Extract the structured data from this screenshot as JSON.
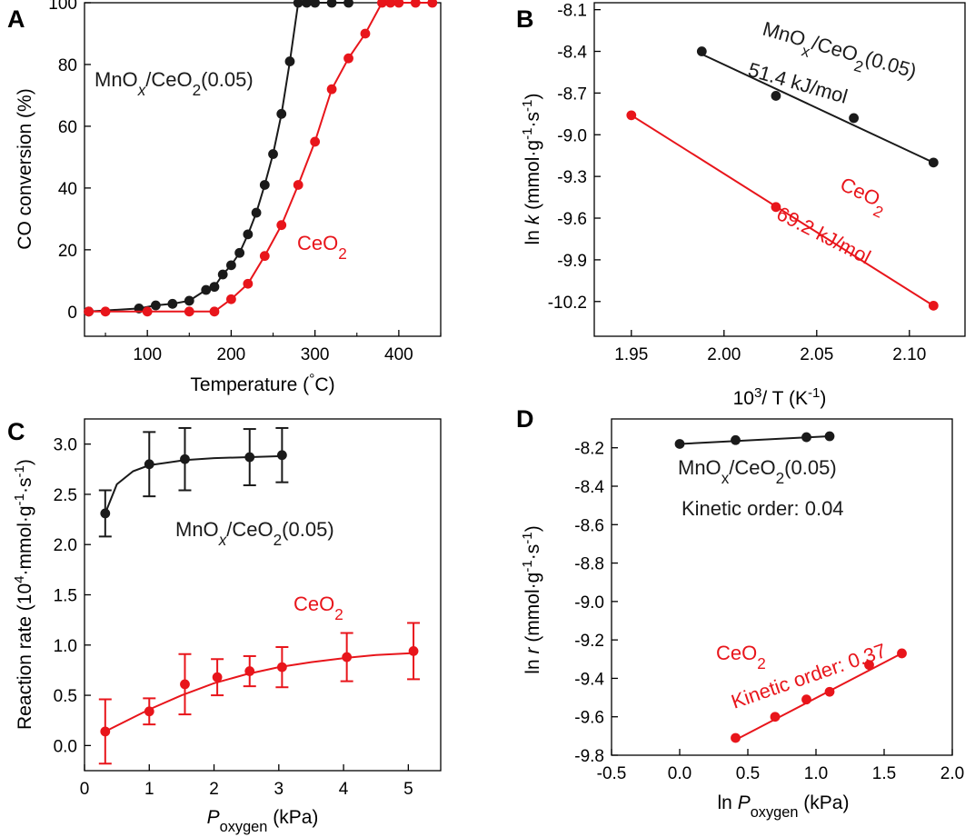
{
  "panel_labels": [
    "A",
    "B",
    "C",
    "D"
  ],
  "colors": {
    "mn": "#1a1a1a",
    "ce": "#e8151b"
  },
  "chart_data": [
    {
      "id": "A",
      "type": "line",
      "xlabel_parts": [
        "Temperature (",
        "°",
        "C)"
      ],
      "ylabel": "CO conversion (%)",
      "xlim": [
        25,
        450
      ],
      "ylim": [
        -8,
        100
      ],
      "xticks": [
        100,
        200,
        300,
        400
      ],
      "yticks": [
        0,
        20,
        40,
        60,
        80,
        100
      ],
      "grid": false,
      "series": [
        {
          "name": "MnOx/CeO2(0.05)",
          "color": "#1a1a1a",
          "x": [
            30,
            90,
            110,
            130,
            150,
            170,
            180,
            190,
            200,
            210,
            220,
            230,
            240,
            250,
            260,
            270,
            280,
            290,
            300,
            320,
            340
          ],
          "y": [
            0,
            1,
            2,
            2.5,
            3.5,
            7,
            8,
            12,
            15,
            19,
            25,
            32,
            41,
            51,
            64,
            81,
            100,
            100,
            100,
            100,
            100
          ]
        },
        {
          "name": "CeO2",
          "color": "#e8151b",
          "x": [
            30,
            50,
            100,
            150,
            180,
            200,
            220,
            240,
            260,
            280,
            300,
            320,
            340,
            360,
            380,
            390,
            400,
            420,
            440
          ],
          "y": [
            0,
            0,
            0,
            0,
            0,
            4,
            9,
            18,
            28,
            41,
            55,
            72,
            82,
            90,
            100,
            100,
            100,
            100,
            100
          ]
        }
      ],
      "labels": [
        {
          "parts": [
            "MnO",
            "x",
            "/CeO",
            "2",
            "(0.05)"
          ],
          "color": "#1a1a1a"
        },
        {
          "parts": [
            "CeO",
            "2"
          ],
          "color": "#e8151b"
        }
      ]
    },
    {
      "id": "B",
      "type": "scatter",
      "xlabel_parts": [
        "10",
        "3",
        "/ T (K",
        "-1",
        ")"
      ],
      "ylabel_parts": [
        "ln ",
        "k",
        " (mmol·g",
        "-1",
        "·s",
        "-1",
        ")"
      ],
      "xlim": [
        1.93,
        2.13
      ],
      "ylim": [
        -10.45,
        -8.05
      ],
      "xticks": [
        1.95,
        2.0,
        2.05,
        2.1
      ],
      "xtick_labels": [
        "1.95",
        "2.00",
        "2.05",
        "2.10"
      ],
      "yticks": [
        -8.1,
        -8.4,
        -8.7,
        -9.0,
        -9.3,
        -9.6,
        -9.9,
        -10.2
      ],
      "ytick_labels": [
        "-8.1",
        "-8.4",
        "-8.7",
        "-9.0",
        "-9.3",
        "-9.6",
        "-9.9",
        "-10.2"
      ],
      "grid": false,
      "series": [
        {
          "name": "MnOx/CeO2(0.05)",
          "color": "#1a1a1a",
          "x": [
            1.988,
            2.028,
            2.07,
            2.113
          ],
          "y": [
            -8.4,
            -8.72,
            -8.88,
            -9.2
          ],
          "fit": [
            [
              1.988,
              -8.42
            ],
            [
              2.113,
              -9.2
            ]
          ]
        },
        {
          "name": "CeO2",
          "color": "#e8151b",
          "x": [
            1.95,
            2.028,
            2.113
          ],
          "y": [
            -8.86,
            -9.52,
            -10.23
          ],
          "fit": [
            [
              1.95,
              -8.86
            ],
            [
              2.113,
              -10.23
            ]
          ]
        }
      ],
      "labels": [
        {
          "parts": [
            "MnO",
            "x",
            "/CeO",
            "2",
            "(0.05)"
          ],
          "color": "#1a1a1a"
        },
        {
          "text": "51.4 kJ/mol",
          "color": "#1a1a1a"
        },
        {
          "parts": [
            "CeO",
            "2"
          ],
          "color": "#e8151b"
        },
        {
          "text": "69.2 kJ/mol",
          "color": "#e8151b"
        }
      ]
    },
    {
      "id": "C",
      "type": "scatter",
      "xlabel_parts": [
        "P",
        "oxygen",
        " (kPa)"
      ],
      "ylabel_parts": [
        "Reaction rate (10",
        "4",
        "·mmol·g",
        "-1",
        "·s",
        "-1",
        ")"
      ],
      "xlim": [
        0,
        5.5
      ],
      "ylim": [
        -0.25,
        3.25
      ],
      "xticks": [
        0,
        1,
        2,
        3,
        4,
        5
      ],
      "xtick_labels": [
        "0",
        "1",
        "2",
        "3",
        "4",
        "5"
      ],
      "yticks": [
        0,
        0.5,
        1.0,
        1.5,
        2.0,
        2.5,
        3.0
      ],
      "ytick_labels": [
        "0.0",
        "0.5",
        "1.0",
        "1.5",
        "2.0",
        "2.5",
        "3.0"
      ],
      "grid": false,
      "series": [
        {
          "name": "MnOx/CeO2(0.05)",
          "color": "#1a1a1a",
          "x": [
            0.32,
            1.0,
            1.55,
            2.55,
            3.05
          ],
          "y": [
            2.31,
            2.8,
            2.85,
            2.87,
            2.89
          ],
          "err": [
            0.23,
            0.32,
            0.31,
            0.28,
            0.27
          ],
          "fit": [
            [
              0.32,
              2.31
            ],
            [
              0.5,
              2.6
            ],
            [
              0.75,
              2.73
            ],
            [
              1.0,
              2.79
            ],
            [
              1.55,
              2.84
            ],
            [
              2.0,
              2.86
            ],
            [
              2.55,
              2.87
            ],
            [
              3.05,
              2.88
            ]
          ]
        },
        {
          "name": "CeO2",
          "color": "#e8151b",
          "x": [
            0.32,
            1.0,
            1.55,
            2.05,
            2.55,
            3.05,
            4.05,
            5.08
          ],
          "y": [
            0.14,
            0.34,
            0.61,
            0.68,
            0.74,
            0.78,
            0.88,
            0.94
          ],
          "err": [
            0.32,
            0.13,
            0.3,
            0.18,
            0.15,
            0.2,
            0.24,
            0.28
          ],
          "fit": [
            [
              0.32,
              0.14
            ],
            [
              1.0,
              0.36
            ],
            [
              1.5,
              0.5
            ],
            [
              2.0,
              0.62
            ],
            [
              2.5,
              0.71
            ],
            [
              3.0,
              0.78
            ],
            [
              3.5,
              0.83
            ],
            [
              4.0,
              0.87
            ],
            [
              4.5,
              0.9
            ],
            [
              5.08,
              0.92
            ]
          ]
        }
      ],
      "labels": [
        {
          "parts": [
            "MnO",
            "x",
            "/CeO",
            "2",
            "(0.05)"
          ],
          "color": "#1a1a1a"
        },
        {
          "parts": [
            "CeO",
            "2"
          ],
          "color": "#e8151b"
        }
      ]
    },
    {
      "id": "D",
      "type": "scatter",
      "xlabel_parts": [
        "ln ",
        "P",
        "oxygen",
        " (kPa)"
      ],
      "ylabel_parts": [
        "ln ",
        "r",
        " (mmol·g",
        "-1",
        "·s",
        "-1",
        ")"
      ],
      "xlim": [
        -0.5,
        2.0
      ],
      "ylim": [
        -9.8,
        -8.05
      ],
      "xticks": [
        -0.5,
        0.0,
        0.5,
        1.0,
        1.5,
        2.0
      ],
      "xtick_labels": [
        "-0.5",
        "0.0",
        "0.5",
        "1.0",
        "1.5",
        "2.0"
      ],
      "yticks": [
        -8.2,
        -8.4,
        -8.6,
        -8.8,
        -9.0,
        -9.2,
        -9.4,
        -9.6,
        -9.8
      ],
      "ytick_labels": [
        "-8.2",
        "-8.4",
        "-8.6",
        "-8.8",
        "-9.0",
        "-9.2",
        "-9.4",
        "-9.6",
        "-9.8"
      ],
      "grid": false,
      "series": [
        {
          "name": "MnOx/CeO2(0.05)",
          "color": "#1a1a1a",
          "x": [
            0.0,
            0.41,
            0.93,
            1.1
          ],
          "y": [
            -8.18,
            -8.16,
            -8.145,
            -8.14
          ],
          "fit": [
            [
              0.0,
              -8.18
            ],
            [
              1.1,
              -8.14
            ]
          ]
        },
        {
          "name": "CeO2",
          "color": "#e8151b",
          "x": [
            0.41,
            0.7,
            0.93,
            1.1,
            1.39,
            1.63
          ],
          "y": [
            -9.71,
            -9.6,
            -9.51,
            -9.47,
            -9.33,
            -9.27
          ],
          "fit": [
            [
              0.41,
              -9.72
            ],
            [
              1.63,
              -9.27
            ]
          ]
        }
      ],
      "labels": [
        {
          "parts": [
            "MnO",
            "x",
            "/CeO",
            "2",
            "(0.05)"
          ],
          "color": "#1a1a1a"
        },
        {
          "text": "Kinetic order: 0.04",
          "color": "#1a1a1a"
        },
        {
          "parts": [
            "CeO",
            "2"
          ],
          "color": "#e8151b"
        },
        {
          "text": "Kinetic order: 0.37",
          "color": "#e8151b"
        }
      ]
    }
  ]
}
